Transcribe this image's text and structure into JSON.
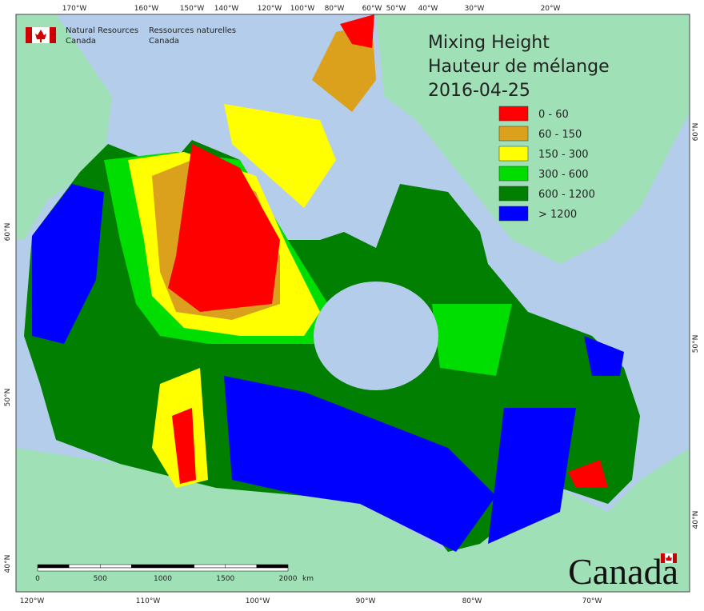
{
  "header": {
    "agency_en": [
      "Natural Resources",
      "Canada"
    ],
    "agency_fr": [
      "Ressources naturelles",
      "Canada"
    ]
  },
  "title": {
    "lines": [
      "Mixing Height",
      "Hauteur de mélange",
      "2016-04-25"
    ]
  },
  "legend": {
    "items": [
      {
        "label": "0 - 60",
        "color": "#ff0000"
      },
      {
        "label": "60 - 150",
        "color": "#dba11c"
      },
      {
        "label": "150 - 300",
        "color": "#ffff00"
      },
      {
        "label": "300 - 600",
        "color": "#00dd00"
      },
      {
        "label": "600 - 1200",
        "color": "#007f00"
      },
      {
        "label": "> 1200",
        "color": "#0000ff"
      }
    ]
  },
  "top_longitudes": [
    "170°W",
    "160°W",
    "150°W",
    "140°W",
    "120°W",
    "100°W",
    "80°W",
    "60°W",
    "50°W",
    "40°W",
    "30°W",
    "20°W"
  ],
  "bottom_longitudes": [
    "120°W",
    "110°W",
    "100°W",
    "90°W",
    "80°W",
    "70°W"
  ],
  "left_latitudes": [
    "60°N",
    "50°N",
    "40°N"
  ],
  "right_latitudes": [
    "60°N",
    "50°N",
    "40°N"
  ],
  "scale_bar": {
    "labels": [
      "0",
      "500",
      "1000",
      "1500",
      "2000"
    ],
    "unit": "km"
  },
  "wordmark": "Canada"
}
